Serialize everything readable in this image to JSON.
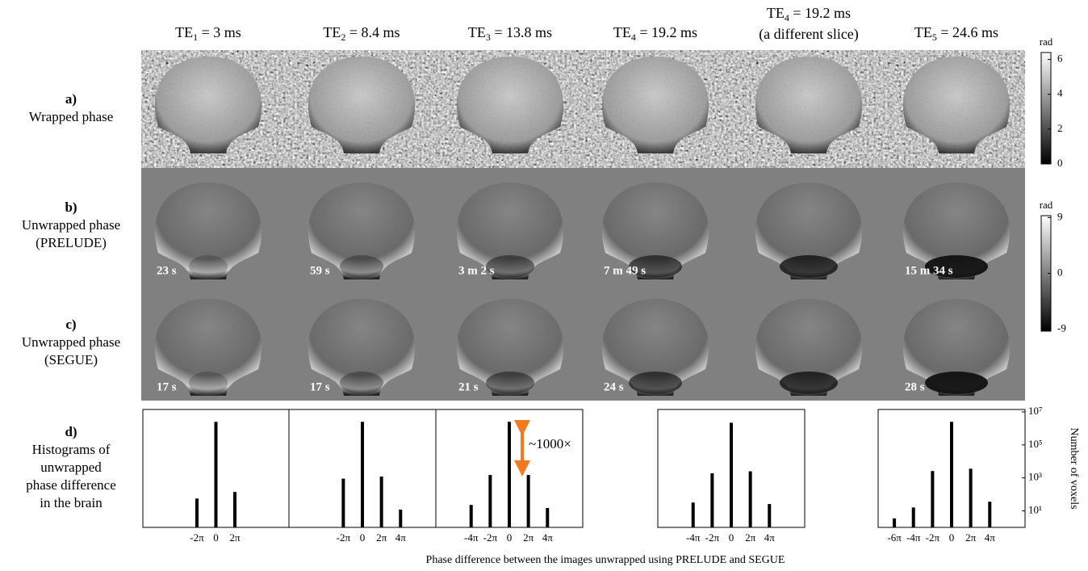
{
  "columns": [
    {
      "te": "TE",
      "sub": "1",
      "rest": " = 3 ms"
    },
    {
      "te": "TE",
      "sub": "2",
      "rest": " = 8.4 ms"
    },
    {
      "te": "TE",
      "sub": "3",
      "rest": " = 13.8 ms"
    },
    {
      "te": "TE",
      "sub": "4",
      "rest": " = 19.2 ms"
    },
    {
      "te": "TE",
      "sub": "4",
      "rest": " = 19.2 ms",
      "note": "(a different slice)"
    },
    {
      "te": "TE",
      "sub": "5",
      "rest": " = 24.6 ms"
    }
  ],
  "rows": [
    {
      "letter": "a)",
      "lines": [
        "Wrapped phase"
      ]
    },
    {
      "letter": "b)",
      "lines": [
        "Unwrapped phase",
        "(PRELUDE)"
      ]
    },
    {
      "letter": "c)",
      "lines": [
        "Unwrapped phase",
        "(SEGUE)"
      ]
    },
    {
      "letter": "d)",
      "lines": [
        "Histograms of",
        "unwrapped",
        "phase difference",
        "in the brain"
      ]
    }
  ],
  "times_prelude": [
    "23 s",
    "59 s",
    "3 m 2 s",
    "7 m 49 s",
    "15 m 34 s"
  ],
  "times_segue": [
    "17 s",
    "17 s",
    "21 s",
    "24 s",
    "28 s"
  ],
  "colorbars": [
    {
      "label": "rad",
      "lim": [
        0,
        6.4
      ],
      "ticks": [
        0,
        2,
        4,
        6
      ]
    },
    {
      "label": "rad",
      "lim": [
        -9.3,
        9.3
      ],
      "ticks": [
        9,
        0,
        -9
      ]
    }
  ],
  "histogram_xlabel": "Phase difference between the images unwrapped using PRELUDE and SEGUE",
  "chart_data": [
    {
      "type": "bar",
      "x": [
        -2,
        0,
        2
      ],
      "values": [
        56,
        2500000,
        140
      ],
      "color": "#000000",
      "xlim": [
        -7.7,
        7.7
      ],
      "ylim": [
        1,
        14000000
      ],
      "log_y": true,
      "xticks": [
        {
          "value": -2,
          "label": "-2π"
        },
        0,
        {
          "value": 2,
          "label": "2π"
        }
      ]
    },
    {
      "type": "bar",
      "x": [
        -2,
        0,
        2,
        4
      ],
      "values": [
        900,
        2500000,
        1200,
        12
      ],
      "color": "#000000",
      "xlim": [
        -7.7,
        7.7
      ],
      "ylim": [
        1,
        14000000
      ],
      "log_y": true,
      "xticks": [
        {
          "value": -2,
          "label": "-2π"
        },
        0,
        {
          "value": 2,
          "label": "2π"
        },
        {
          "value": 4,
          "label": "4π"
        }
      ]
    },
    {
      "type": "bar",
      "x": [
        -4,
        -2,
        0,
        2,
        4
      ],
      "values": [
        23,
        1500,
        2500000,
        1500,
        15
      ],
      "color": "#000000",
      "xlim": [
        -7.7,
        7.7
      ],
      "ylim": [
        1,
        14000000
      ],
      "log_y": true,
      "xticks": [
        {
          "value": -4,
          "label": "-4π"
        },
        {
          "value": -2,
          "label": "-2π"
        },
        0,
        {
          "value": 2,
          "label": "2π"
        },
        {
          "value": 4,
          "label": "4π"
        }
      ],
      "annotation": "~1000×"
    },
    {
      "type": "bar",
      "x": [
        -4,
        -2,
        0,
        2,
        4
      ],
      "values": [
        32,
        1900,
        2200000,
        2500,
        26
      ],
      "color": "#000000",
      "xlim": [
        -7.7,
        7.7
      ],
      "ylim": [
        1,
        14000000
      ],
      "log_y": true,
      "xticks": [
        {
          "value": -4,
          "label": "-4π"
        },
        {
          "value": -2,
          "label": "-2π"
        },
        0,
        {
          "value": 2,
          "label": "2π"
        },
        {
          "value": 4,
          "label": "4π"
        }
      ]
    },
    {
      "type": "bar",
      "x": [
        -6,
        -4,
        -2,
        0,
        2,
        4
      ],
      "values": [
        3.5,
        16,
        2600,
        2500000,
        3600,
        36
      ],
      "color": "#000000",
      "xlim": [
        -7.7,
        7.7
      ],
      "ylim": [
        1,
        14000000
      ],
      "log_y": true,
      "xticks": [
        {
          "value": -6,
          "label": "-6π"
        },
        {
          "value": -4,
          "label": "-4π"
        },
        {
          "value": -2,
          "label": "-2π"
        },
        0,
        {
          "value": 2,
          "label": "2π"
        },
        {
          "value": 4,
          "label": "4π"
        }
      ],
      "yticks": [
        {
          "value": 10,
          "label": "10¹"
        },
        {
          "value": 1000,
          "label": "10³"
        },
        {
          "value": 100000,
          "label": "10⁵"
        },
        {
          "value": 10000000,
          "label": "10⁷"
        }
      ],
      "ylabel": "Number of voxels"
    }
  ]
}
